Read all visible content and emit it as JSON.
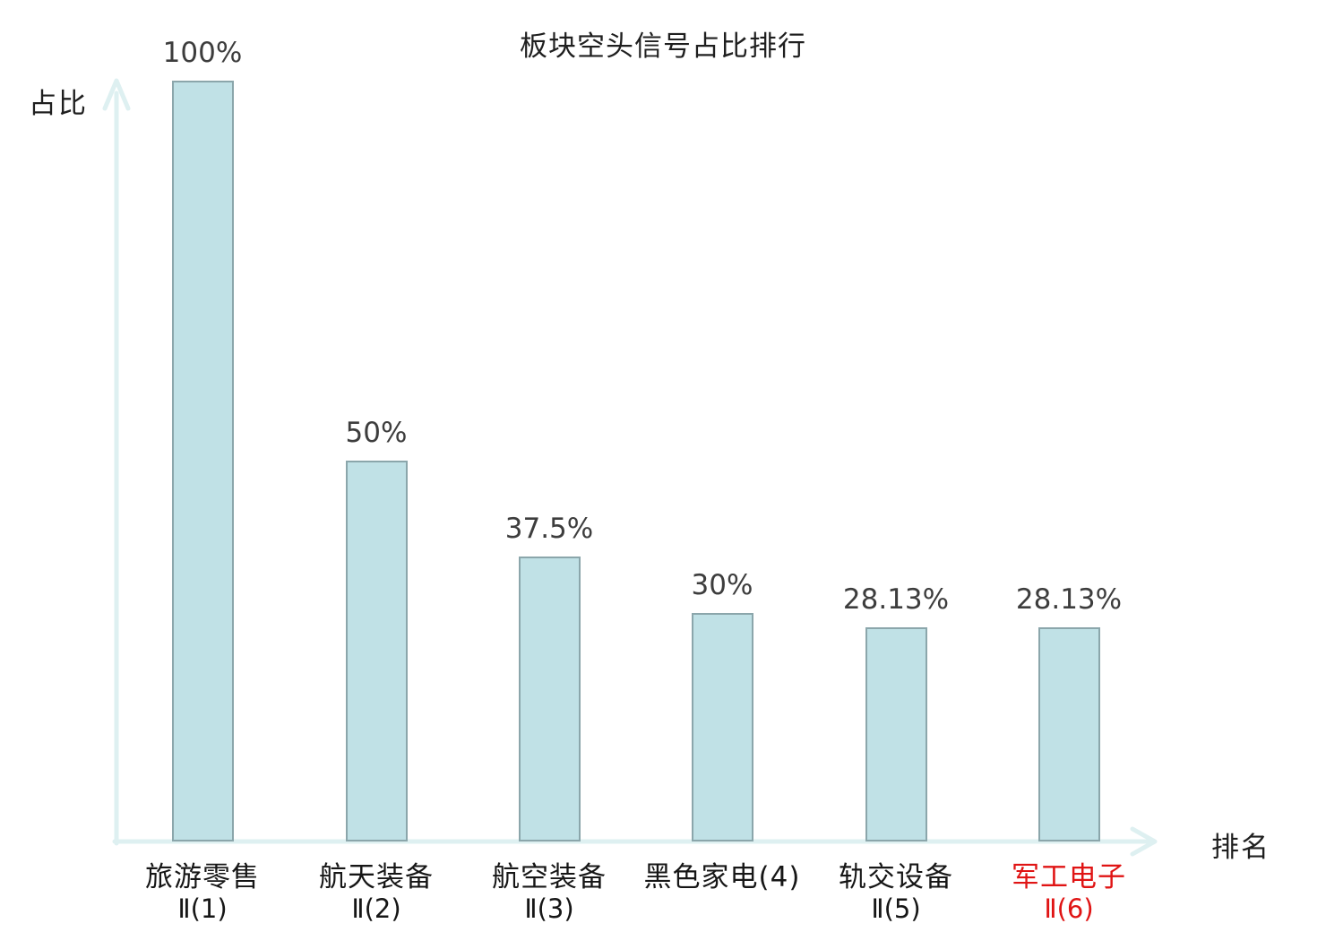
{
  "chart_data": {
    "type": "bar",
    "title": "板块空头信号占比排行",
    "ylabel": "占比",
    "xlabel": "排名",
    "ylim": [
      0,
      100
    ],
    "unit": "percent",
    "grid": false,
    "legend": null,
    "categories": [
      "旅游零售Ⅱ(1)",
      "航天装备Ⅱ(2)",
      "航空装备Ⅱ(3)",
      "黑色家电(4)",
      "轨交设备Ⅱ(5)",
      "军工电子Ⅱ(6)"
    ],
    "values": [
      100,
      50,
      37.5,
      30,
      28.13,
      28.13
    ],
    "value_labels": [
      "100%",
      "50%",
      "37.5%",
      "30%",
      "28.13%",
      "28.13%"
    ],
    "category_label_lines": [
      [
        "旅游零售",
        "Ⅱ(1)"
      ],
      [
        "航天装备",
        "Ⅱ(2)"
      ],
      [
        "航空装备",
        "Ⅱ(3)"
      ],
      [
        "黑色家电(4)",
        ""
      ],
      [
        "轨交设备",
        "Ⅱ(5)"
      ],
      [
        "军工电子",
        "Ⅱ(6)"
      ]
    ],
    "highlighted_category_index": 5,
    "colors": {
      "bar_fill": "#c0e1e6",
      "bar_border": "#8ba6ab",
      "axis": "#def0f1",
      "title_text": "#1f1f1f",
      "value_text": "#3d3d3d",
      "category_text": "#161616",
      "highlight_text": "#e01414",
      "background": "#ffffff"
    }
  }
}
